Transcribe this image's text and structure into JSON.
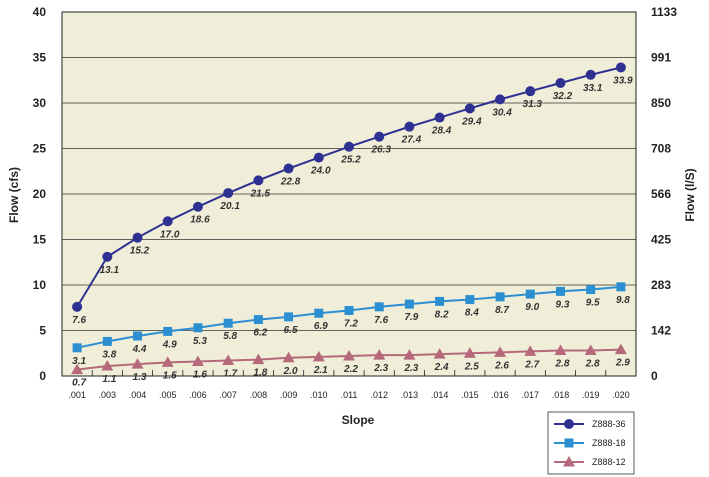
{
  "chart_data": {
    "type": "line",
    "xlabel": "Slope",
    "ylabel": "Flow (cfs)",
    "y2label": "Flow (l/S)",
    "categories": [
      ".001",
      ".003",
      ".004",
      ".005",
      ".006",
      ".007",
      ".008",
      ".009",
      ".010",
      ".011",
      ".012",
      ".013",
      ".014",
      ".015",
      ".016",
      ".017",
      ".018",
      ".019",
      ".020"
    ],
    "ylim": [
      0,
      40
    ],
    "yticks": [
      "0",
      "5",
      "10",
      "15",
      "20",
      "25",
      "30",
      "35",
      "40"
    ],
    "y2ticks": [
      "0",
      "142",
      "283",
      "425",
      "566",
      "708",
      "850",
      "991",
      "1133"
    ],
    "grid": true,
    "legend_position": "bottom-right",
    "plot_background": "#f0eed8",
    "series": [
      {
        "name": "Z888-36",
        "color": "#2e3192",
        "marker": "circle",
        "values": [
          7.6,
          13.1,
          15.2,
          17.0,
          18.6,
          20.1,
          21.5,
          22.8,
          24.0,
          25.2,
          26.3,
          27.4,
          28.4,
          29.4,
          30.4,
          31.3,
          32.2,
          33.1,
          33.9
        ],
        "labels": [
          "7.6",
          "13.1",
          "15.2",
          "17.0",
          "18.6",
          "20.1",
          "21.5",
          "22.8",
          "24.0",
          "25.2",
          "26.3",
          "27.4",
          "28.4",
          "29.4",
          "30.4",
          "31.3",
          "32.2",
          "33.1",
          "33.9"
        ]
      },
      {
        "name": "Z888-18",
        "color": "#2b8fd1",
        "marker": "square",
        "values": [
          3.1,
          3.8,
          4.4,
          4.9,
          5.3,
          5.8,
          6.2,
          6.5,
          6.9,
          7.2,
          7.6,
          7.9,
          8.2,
          8.4,
          8.7,
          9.0,
          9.3,
          9.5,
          9.8
        ],
        "labels": [
          "3.1",
          "3.8",
          "4.4",
          "4.9",
          "5.3",
          "5.8",
          "6.2",
          "6.5",
          "6.9",
          "7.2",
          "7.6",
          "7.9",
          "8.2",
          "8.4",
          "8.7",
          "9.0",
          "9.3",
          "9.5",
          "9.8"
        ]
      },
      {
        "name": "Z888-12",
        "color": "#b5697a",
        "marker": "triangle",
        "values": [
          0.7,
          1.1,
          1.3,
          1.5,
          1.6,
          1.7,
          1.8,
          2.0,
          2.1,
          2.2,
          2.3,
          2.3,
          2.4,
          2.5,
          2.6,
          2.7,
          2.8,
          2.8,
          2.9
        ],
        "labels": [
          "0.7",
          "1.1",
          "1.3",
          "1.5",
          "1.6",
          "1.7",
          "1.8",
          "2.0",
          "2.1",
          "2.2",
          "2.3",
          "2.3",
          "2.4",
          "2.5",
          "2.6",
          "2.7",
          "2.8",
          "2.8",
          "2.9"
        ]
      }
    ]
  }
}
